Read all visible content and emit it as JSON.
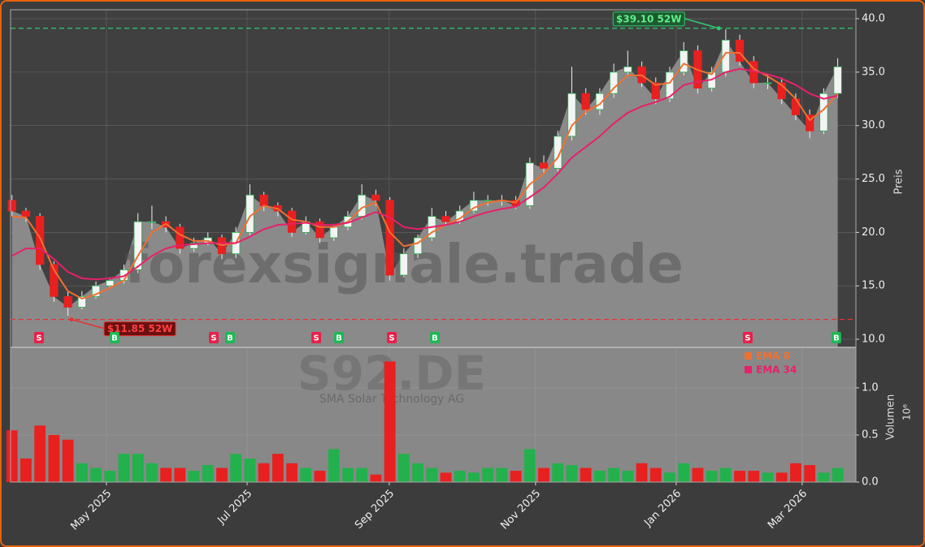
{
  "chart_data": {
    "type": "candlestick",
    "watermark": "forexsignale.trade",
    "ticker": "S92.DE",
    "company": "SMA Solar Technology AG",
    "ylabel": "Preis",
    "volume_label": "Volumen",
    "volume_offset": "10⁶",
    "xlim": [
      -0.1,
      60.3
    ],
    "xticks": [
      {
        "value": 6.75,
        "label": "May 2025"
      },
      {
        "value": 16.8,
        "label": "Jul 2025"
      },
      {
        "value": 26.96,
        "label": "Sep 2025"
      },
      {
        "value": 37.41,
        "label": "Nov 2025"
      },
      {
        "value": 47.46,
        "label": "Jan 2026"
      },
      {
        "value": 56.46,
        "label": "Mar 2026"
      }
    ],
    "ylim": [
      9.24,
      40.84
    ],
    "yticks": [
      {
        "value": 10,
        "label": "10.0"
      },
      {
        "value": 15,
        "label": "15.0"
      },
      {
        "value": 20,
        "label": "20.0"
      },
      {
        "value": 25,
        "label": "25.0"
      },
      {
        "value": 30,
        "label": "30.0"
      },
      {
        "value": 35,
        "label": "35.0"
      },
      {
        "value": 40,
        "label": "40.0"
      }
    ],
    "volume_ylim": [
      0,
      1.43
    ],
    "volume_yticks": [
      {
        "value": 0,
        "label": "0.0"
      },
      {
        "value": 0.5,
        "label": "0.5"
      },
      {
        "value": 1,
        "label": "1.0"
      }
    ],
    "grid": true,
    "up_color": "#22b14c",
    "down_color": "#e82020",
    "candles": {
      "open": [
        23,
        22,
        21.5,
        17,
        14,
        13,
        14,
        15,
        15.5,
        16.5,
        21,
        21,
        20.5,
        18.5,
        19,
        19.5,
        18,
        20,
        23.5,
        22.5,
        22,
        20,
        21,
        19.5,
        20.5,
        21.5,
        23.5,
        23,
        16,
        18,
        19.5,
        21.5,
        21,
        22,
        23,
        23,
        23,
        22.5,
        26.5,
        26,
        29,
        33,
        31.5,
        33,
        35,
        35.5,
        34,
        32.5,
        35,
        37,
        33.5,
        35,
        38,
        36,
        34,
        34,
        32.5,
        31,
        29.5,
        33
      ],
      "high": [
        23.5,
        22.3,
        21.8,
        17.3,
        14.5,
        14.5,
        15.4,
        15.8,
        17,
        21.8,
        22.5,
        21.5,
        20.8,
        19.5,
        20,
        19.8,
        20.5,
        24.5,
        23.8,
        22.8,
        22.3,
        21.5,
        21.3,
        20.8,
        22,
        24.5,
        24,
        23.3,
        18.5,
        19.8,
        22.3,
        22,
        22.5,
        23.8,
        23.5,
        23.5,
        23.4,
        27,
        27.2,
        29.5,
        35.5,
        33.5,
        33.5,
        35.8,
        37,
        36,
        34.5,
        35.5,
        37.8,
        37.5,
        35.5,
        39,
        38.5,
        36.5,
        34.8,
        34.5,
        33,
        31.5,
        33.5,
        36.3
      ],
      "low": [
        21.5,
        21,
        16.5,
        13.5,
        12.2,
        12.8,
        13.8,
        14.8,
        15.2,
        16.2,
        20.3,
        20,
        18,
        18.2,
        18.8,
        17.5,
        17.6,
        19.7,
        22,
        21.5,
        19.6,
        19.8,
        19,
        19.2,
        20.2,
        21.2,
        22.5,
        15.5,
        15.8,
        17.6,
        19.2,
        20.6,
        20.8,
        21.8,
        22.5,
        22.5,
        22.2,
        22.2,
        25.5,
        25.7,
        28.6,
        31,
        31,
        32.6,
        34.6,
        33.6,
        32,
        32.2,
        34.7,
        33,
        33.2,
        34.6,
        35.6,
        33.5,
        33.4,
        32,
        30.5,
        28.8,
        29.2,
        32.6
      ],
      "close": [
        22,
        21.5,
        17,
        14,
        13,
        14,
        15,
        15.5,
        16.5,
        21,
        21,
        20.5,
        18.5,
        19,
        19.5,
        18,
        20,
        23.5,
        22.5,
        22,
        20,
        21,
        19.5,
        20.5,
        21.5,
        23.5,
        23,
        16,
        18,
        19.5,
        21.5,
        21,
        22,
        23,
        23,
        23,
        22.5,
        26.5,
        26,
        29,
        33,
        31.5,
        33,
        35,
        35.5,
        34,
        32.5,
        35,
        37,
        33.5,
        35,
        38,
        36,
        34,
        34,
        32.5,
        31,
        29.5,
        33,
        35.5
      ]
    },
    "series": [
      {
        "name": "EMA 8",
        "color": "#f07030",
        "values": [
          21.5,
          21.4,
          19.5,
          16.5,
          14.5,
          13.8,
          14.2,
          14.8,
          15.5,
          17.8,
          20,
          20.8,
          19.8,
          19.2,
          19.2,
          18.8,
          19,
          21.5,
          22.5,
          22.2,
          21.2,
          21,
          20.5,
          20.5,
          21,
          22.3,
          22.8,
          20,
          18.7,
          19,
          20,
          20.7,
          21.3,
          22.3,
          22.8,
          23,
          22.8,
          24.5,
          25.5,
          27,
          30,
          31.3,
          32,
          33.5,
          34.7,
          34.7,
          33.8,
          34,
          35.8,
          35.2,
          34.8,
          36.8,
          36.8,
          35.3,
          34.6,
          33.8,
          32.5,
          30.5,
          31.5,
          33
        ]
      },
      {
        "name": "EMA 34",
        "color": "#e8206a",
        "values": [
          17.8,
          18.5,
          18.5,
          17.5,
          16.3,
          15.7,
          15.6,
          15.7,
          15.9,
          16.8,
          17.8,
          18.5,
          18.8,
          18.9,
          19,
          19,
          19,
          19.6,
          20.3,
          20.7,
          20.8,
          20.9,
          20.7,
          20.7,
          20.9,
          21.4,
          21.9,
          21.4,
          20.5,
          20.3,
          20.5,
          20.7,
          21,
          21.5,
          21.9,
          22.2,
          22.4,
          23.3,
          24.2,
          25.5,
          27,
          28,
          29,
          30.2,
          31.2,
          31.8,
          32.2,
          32.7,
          33.8,
          34.1,
          34.3,
          35,
          35.3,
          35.1,
          34.8,
          34.4,
          33.8,
          33,
          32.5,
          32.8
        ]
      }
    ],
    "volume": [
      0.55,
      0.25,
      0.6,
      0.5,
      0.45,
      0.2,
      0.15,
      0.12,
      0.3,
      0.3,
      0.2,
      0.15,
      0.15,
      0.12,
      0.18,
      0.15,
      0.3,
      0.25,
      0.2,
      0.3,
      0.2,
      0.15,
      0.12,
      0.35,
      0.15,
      0.15,
      0.08,
      1.28,
      0.3,
      0.2,
      0.15,
      0.1,
      0.12,
      0.1,
      0.15,
      0.15,
      0.12,
      0.35,
      0.15,
      0.2,
      0.18,
      0.15,
      0.12,
      0.15,
      0.12,
      0.2,
      0.15,
      0.1,
      0.2,
      0.15,
      0.12,
      0.15,
      0.12,
      0.12,
      0.1,
      0.1,
      0.2,
      0.18,
      0.1,
      0.15
    ],
    "levels": [
      {
        "text": "$39.10 52W",
        "value": 39.1,
        "x": 50.5,
        "color": "#2ecc71"
      },
      {
        "text": "$11.85 52W",
        "value": 11.85,
        "x": 4.26,
        "color": "#e83030"
      }
    ],
    "signals": [
      {
        "label": "S",
        "x": 1.93
      },
      {
        "label": "B",
        "x": 7.33
      },
      {
        "label": "S",
        "x": 14.42
      },
      {
        "label": "B",
        "x": 15.58
      },
      {
        "label": "S",
        "x": 21.74
      },
      {
        "label": "B",
        "x": 23.36
      },
      {
        "label": "S",
        "x": 27.14
      },
      {
        "label": "B",
        "x": 30.21
      },
      {
        "label": "S",
        "x": 52.57
      },
      {
        "label": "B",
        "x": 58.9
      }
    ]
  }
}
